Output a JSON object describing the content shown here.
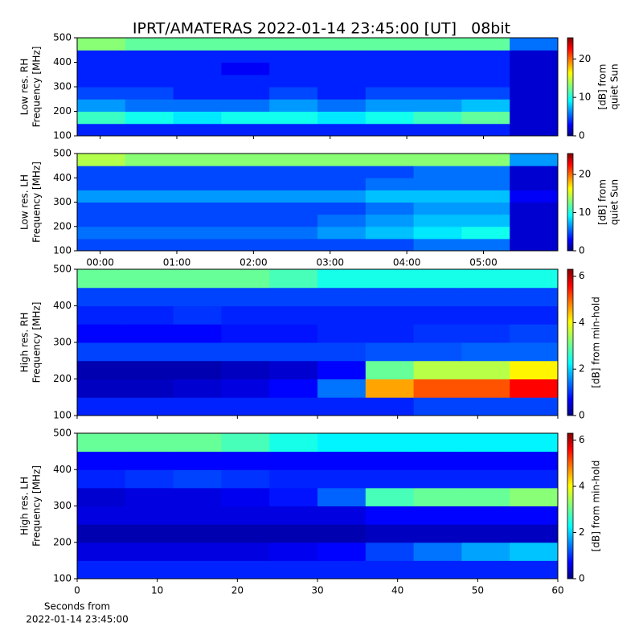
{
  "title": "IPRT/AMATERAS 2022-01-14 23:45:00 [UT]   08bit",
  "chart_data": [
    {
      "type": "heatmap",
      "cmap": "jet",
      "y_label": [
        "Low res. RH",
        "Frequency [MHz]"
      ],
      "ylim": [
        100,
        500
      ],
      "yticks": [
        100,
        200,
        300,
        400,
        500
      ],
      "xlim": [
        -0.3,
        5.97
      ],
      "z": [
        [
          4,
          4,
          4,
          4,
          4,
          4,
          4,
          4,
          4,
          2
        ],
        [
          11,
          10,
          9,
          10,
          10,
          9,
          10,
          11,
          12,
          2
        ],
        [
          7,
          6,
          6,
          6,
          7,
          6,
          7,
          7,
          8,
          2
        ],
        [
          5,
          5,
          4,
          4,
          5,
          4,
          5,
          5,
          5,
          2
        ],
        [
          4,
          4,
          4,
          4,
          4,
          4,
          4,
          4,
          4,
          2
        ],
        [
          4,
          4,
          4,
          3,
          4,
          4,
          4,
          4,
          4,
          2
        ],
        [
          4,
          4,
          4,
          4,
          4,
          4,
          4,
          4,
          4,
          2
        ],
        [
          13,
          12,
          12,
          12,
          12,
          12,
          12,
          12,
          12,
          6
        ]
      ],
      "colorbar": {
        "label": [
          "[dB] from",
          "quiet Sun"
        ],
        "lim": [
          0,
          25.5
        ],
        "ticks": [
          0,
          10,
          20
        ]
      }
    },
    {
      "type": "heatmap",
      "cmap": "jet",
      "y_label": [
        "Low res. LH",
        "Frequency [MHz]"
      ],
      "ylim": [
        100,
        500
      ],
      "yticks": [
        100,
        200,
        300,
        400,
        500
      ],
      "xlim": [
        -0.3,
        5.97
      ],
      "xticks": [
        {
          "value": 0,
          "label": "00:00"
        },
        {
          "value": 1,
          "label": "01:00"
        },
        {
          "value": 2,
          "label": "02:00"
        },
        {
          "value": 3,
          "label": "03:00"
        },
        {
          "value": 4,
          "label": "04:00"
        },
        {
          "value": 5,
          "label": "05:00"
        }
      ],
      "z": [
        [
          5,
          5,
          5,
          5,
          5,
          5,
          5,
          6,
          6,
          2
        ],
        [
          6,
          6,
          6,
          6,
          6,
          7,
          8,
          9,
          10,
          2
        ],
        [
          5,
          5,
          5,
          5,
          5,
          6,
          7,
          8,
          8,
          2
        ],
        [
          5,
          5,
          5,
          5,
          5,
          5,
          6,
          7,
          7,
          2
        ],
        [
          7,
          7,
          7,
          7,
          7,
          7,
          8,
          8,
          8,
          3
        ],
        [
          5,
          5,
          5,
          5,
          5,
          5,
          6,
          6,
          6,
          2
        ],
        [
          5,
          5,
          5,
          5,
          5,
          5,
          5,
          6,
          6,
          2
        ],
        [
          14,
          13,
          13,
          13,
          13,
          13,
          13,
          13,
          13,
          7
        ]
      ],
      "colorbar": {
        "label": [
          "[dB] from",
          "quiet Sun"
        ],
        "lim": [
          0,
          25.5
        ],
        "ticks": [
          0,
          10,
          20
        ]
      }
    },
    {
      "type": "heatmap",
      "cmap": "jet",
      "y_label": [
        "High res. RH",
        "Frequency [MHz]"
      ],
      "ylim": [
        100,
        500
      ],
      "yticks": [
        100,
        200,
        300,
        400,
        500
      ],
      "xlim": [
        0,
        60
      ],
      "z": [
        [
          1,
          1,
          1,
          1,
          1,
          1,
          1,
          1.2,
          1.2,
          1.2
        ],
        [
          0.4,
          0.4,
          0.5,
          0.6,
          0.8,
          1.5,
          4.5,
          5,
          5,
          5.5
        ],
        [
          0.3,
          0.3,
          0.3,
          0.4,
          0.5,
          0.8,
          3,
          3.5,
          3.5,
          4
        ],
        [
          1.2,
          1.2,
          1.2,
          1.2,
          1.2,
          1.2,
          1.3,
          1.3,
          1.4,
          1.4
        ],
        [
          0.8,
          0.8,
          0.8,
          0.9,
          0.9,
          1,
          1,
          1.1,
          1.1,
          1.2
        ],
        [
          1,
          1,
          1.1,
          1,
          1,
          1,
          1,
          1,
          1,
          1
        ],
        [
          1.2,
          1.2,
          1.2,
          1.2,
          1.2,
          1.2,
          1.2,
          1.2,
          1.2,
          1.2
        ],
        [
          3,
          3,
          3,
          3,
          2.8,
          2.5,
          2.5,
          2.5,
          2.5,
          2.5
        ]
      ],
      "colorbar": {
        "label": [
          "[dB] from min-hold"
        ],
        "lim": [
          0,
          6.3
        ],
        "ticks": [
          0,
          2,
          4,
          6
        ]
      }
    },
    {
      "type": "heatmap",
      "cmap": "jet",
      "y_label": [
        "High res. LH",
        "Frequency [MHz]"
      ],
      "ylim": [
        100,
        500
      ],
      "yticks": [
        100,
        200,
        300,
        400,
        500
      ],
      "xlim": [
        0,
        60
      ],
      "xticks": [
        0,
        10,
        20,
        30,
        40,
        50,
        60
      ],
      "x_label": [
        "Seconds from",
        "2022-01-14 23:45:00"
      ],
      "z": [
        [
          1,
          1,
          1,
          1,
          1,
          1,
          1,
          1,
          1,
          1
        ],
        [
          0.6,
          0.6,
          0.6,
          0.6,
          0.7,
          0.8,
          1.2,
          1.5,
          1.8,
          2
        ],
        [
          0.3,
          0.3,
          0.3,
          0.3,
          0.3,
          0.3,
          0.4,
          0.4,
          0.4,
          0.4
        ],
        [
          0.6,
          0.6,
          0.6,
          0.6,
          0.6,
          0.6,
          0.8,
          0.8,
          0.8,
          0.8
        ],
        [
          0.5,
          0.6,
          0.6,
          0.7,
          0.9,
          1.4,
          2.8,
          3,
          3,
          3.2
        ],
        [
          1,
          1.1,
          1.2,
          1.1,
          1,
          1,
          1,
          1,
          1,
          1
        ],
        [
          0.8,
          0.8,
          0.8,
          0.8,
          0.8,
          0.8,
          0.8,
          0.8,
          0.8,
          0.8
        ],
        [
          3,
          3,
          3,
          2.8,
          2.5,
          2.3,
          2.3,
          2.3,
          2.3,
          2.3
        ]
      ],
      "colorbar": {
        "label": [
          "[dB] from min-hold"
        ],
        "lim": [
          0,
          6.3
        ],
        "ticks": [
          0,
          2,
          4,
          6
        ]
      }
    }
  ]
}
